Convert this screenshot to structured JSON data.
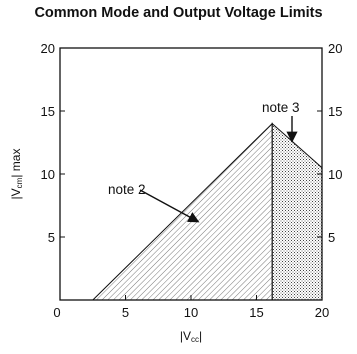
{
  "chart_data": {
    "type": "area",
    "title": "Common Mode and Output Voltage Limits",
    "xlabel": "|Vcc|",
    "ylabel": "|Vcm| max",
    "xlim": [
      0,
      20
    ],
    "ylim": [
      0,
      20
    ],
    "x_ticks": [
      "0",
      "5",
      "10",
      "15",
      "20"
    ],
    "y_ticks": [
      "5",
      "10",
      "15",
      "20"
    ],
    "y2_ticks": [
      "5",
      "10",
      "15",
      "20"
    ],
    "grid": false,
    "regions": [
      {
        "label": "note 2",
        "x": [
          2.5,
          16.2,
          16.2
        ],
        "y": [
          0,
          14,
          0
        ]
      },
      {
        "label": "note 3",
        "x": [
          16.2,
          20,
          20,
          16.2
        ],
        "y": [
          14,
          10.5,
          0,
          0
        ]
      }
    ],
    "annotations": [
      "note 2",
      "note 3"
    ]
  }
}
